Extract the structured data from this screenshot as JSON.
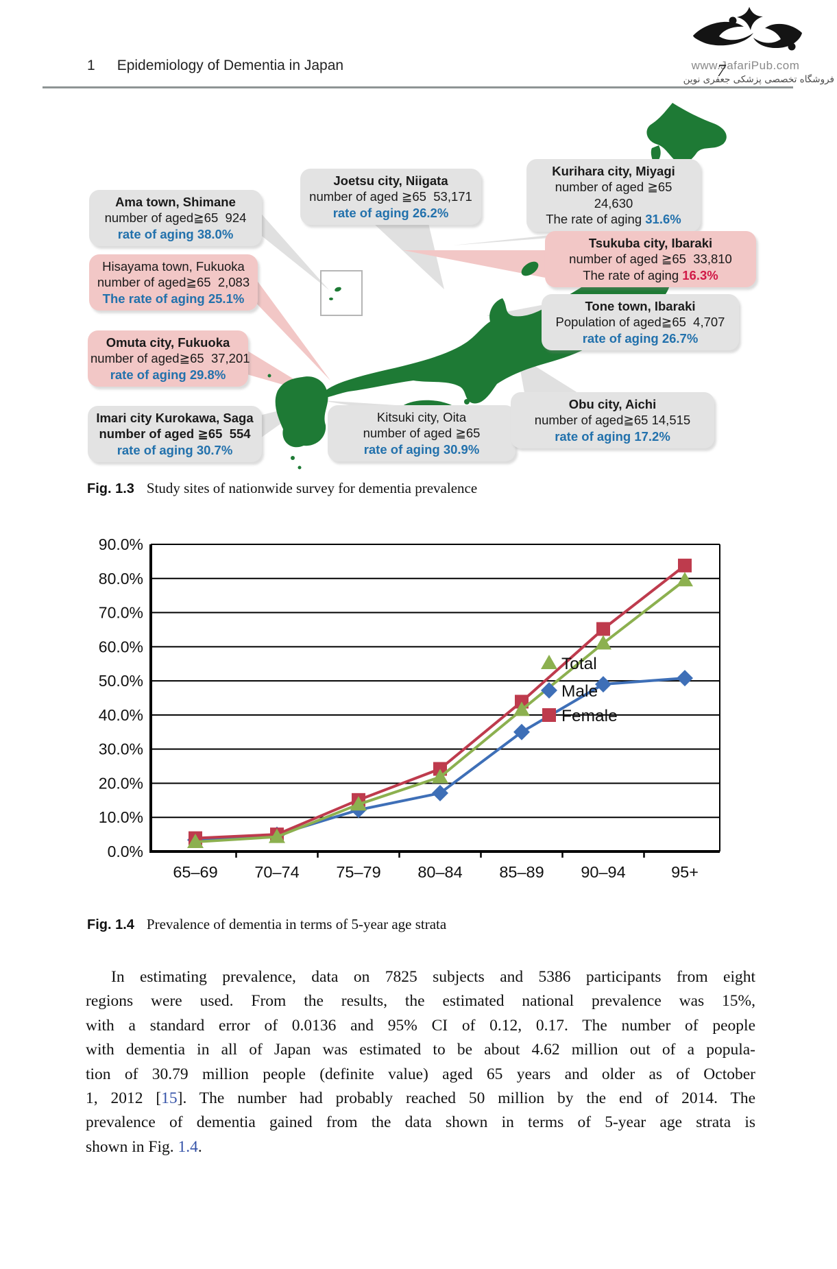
{
  "page": {
    "header": {
      "chapter_number": "1",
      "title": "Epidemiology of Dementia in Japan",
      "page_number": "7"
    },
    "logo": {
      "site": "www.JafariPub.com",
      "tagline_fa": "فروشگاه تخصصی پزشکی جعفری نوین"
    }
  },
  "figure_map": {
    "caption_label": "Fig. 1.3",
    "caption_text": "Study sites of nationwide survey for dementia prevalence",
    "callouts": [
      {
        "id": "ama",
        "variant": "gray",
        "lines": [
          [
            {
              "t": "Ama town, Shimane",
              "b": 1
            }
          ],
          [
            {
              "t": "number of aged≧65  924"
            }
          ],
          [
            {
              "t": "rate of aging 38.0%",
              "c": "blue"
            }
          ]
        ]
      },
      {
        "id": "hisayama",
        "variant": "pink",
        "lines": [
          [
            {
              "t": "Hisayama town, Fukuoka"
            }
          ],
          [
            {
              "t": "number of aged≧65  2,083"
            }
          ],
          [
            {
              "t": "The rate of aging 25.1%",
              "c": "blue"
            }
          ]
        ]
      },
      {
        "id": "omuta",
        "variant": "pink",
        "lines": [
          [
            {
              "t": "Omuta city, Fukuoka",
              "b": 1
            }
          ],
          [
            {
              "t": "number of aged≧65  37,201"
            }
          ],
          [
            {
              "t": "rate of aging 29.8%",
              "c": "blue"
            }
          ]
        ]
      },
      {
        "id": "imari",
        "variant": "gray",
        "lines": [
          [
            {
              "t": "Imari city Kurokawa, Saga",
              "b": 1
            }
          ],
          [
            {
              "t": "number of aged ≧65  554",
              "b": 1
            }
          ],
          [
            {
              "t": "rate of aging 30.7%",
              "c": "blue"
            }
          ]
        ]
      },
      {
        "id": "joetsu",
        "variant": "gray",
        "lines": [
          [
            {
              "t": "Joetsu city, Niigata",
              "b": 1
            }
          ],
          [
            {
              "t": "number of aged ≧65  53,171"
            }
          ],
          [
            {
              "t": "rate of aging 26.2%",
              "c": "blue"
            }
          ]
        ]
      },
      {
        "id": "kitsuki",
        "variant": "gray",
        "lines": [
          [
            {
              "t": "Kitsuki city, Oita"
            }
          ],
          [
            {
              "t": "number of aged ≧65"
            }
          ],
          [
            {
              "t": "rate of aging 30.9%",
              "c": "blue"
            }
          ]
        ]
      },
      {
        "id": "kurihara",
        "variant": "gray",
        "lines": [
          [
            {
              "t": "Kurihara city, Miyagi",
              "b": 1
            }
          ],
          [
            {
              "t": "number of aged ≧65"
            }
          ],
          [
            {
              "t": "24,630"
            }
          ],
          [
            {
              "t": "The rate of aging "
            },
            {
              "t": "31.6%",
              "c": "blue"
            }
          ]
        ]
      },
      {
        "id": "tsukuba",
        "variant": "pink",
        "lines": [
          [
            {
              "t": "Tsukuba city, Ibaraki",
              "b": 1
            }
          ],
          [
            {
              "t": "number of aged ≧65  33,810"
            }
          ],
          [
            {
              "t": "The rate of aging "
            },
            {
              "t": "16.3%",
              "c": "red"
            }
          ]
        ]
      },
      {
        "id": "tone",
        "variant": "gray",
        "lines": [
          [
            {
              "t": "Tone town, Ibaraki",
              "b": 1
            }
          ],
          [
            {
              "t": "Population of aged≧65  4,707"
            }
          ],
          [
            {
              "t": "rate of aging 26.7%",
              "c": "blue"
            }
          ]
        ]
      },
      {
        "id": "obu",
        "variant": "gray",
        "lines": [
          [
            {
              "t": "Obu city, Aichi",
              "b": 1
            }
          ],
          [
            {
              "t": "number of aged≧65 14,515"
            }
          ],
          [
            {
              "t": "rate of aging 17.2%",
              "c": "blue"
            }
          ]
        ]
      }
    ]
  },
  "chart_data": {
    "type": "line",
    "categories": [
      "65–69",
      "70–74",
      "75–79",
      "80–84",
      "85–89",
      "90–94",
      "95+"
    ],
    "series": [
      {
        "name": "Total",
        "marker": "triangle",
        "color": "#8CB04F",
        "values": [
          2.8,
          4.3,
          13.8,
          21.8,
          41.5,
          61.0,
          79.5
        ]
      },
      {
        "name": "Male",
        "marker": "diamond",
        "color": "#3E6FB7",
        "values": [
          3.4,
          4.9,
          12.2,
          17.1,
          35.0,
          49.0,
          50.8
        ]
      },
      {
        "name": "Female",
        "marker": "square",
        "color": "#BE3B4D",
        "values": [
          3.9,
          5.0,
          15.1,
          24.2,
          43.9,
          65.2,
          83.8
        ]
      }
    ],
    "ylim": [
      0,
      90
    ],
    "ytick_step": 10,
    "yticks": [
      "0.0%",
      "10.0%",
      "20.0%",
      "30.0%",
      "40.0%",
      "50.0%",
      "60.0%",
      "70.0%",
      "80.0%",
      "90.0%"
    ],
    "grid": "horizontal",
    "legend_position": "inside-right",
    "title": "",
    "xlabel": "",
    "ylabel": ""
  },
  "figure_chart": {
    "caption_label": "Fig. 1.4",
    "caption_text": "Prevalence of dementia in terms of 5-year age strata"
  },
  "paragraph": {
    "lines": [
      {
        "segments": [
          {
            "t": "In estimating prevalence, data on 7825 subjects and 5386 participants from eight"
          }
        ]
      },
      {
        "segments": [
          {
            "t": "regions were used. From the results, the estimated national prevalence was 15%,"
          }
        ]
      },
      {
        "segments": [
          {
            "t": "with a standard error of 0.0136 and 95% CI of 0.12, 0.17. The number of people"
          }
        ]
      },
      {
        "segments": [
          {
            "t": "with dementia in all of Japan was estimated to be about 4.62 million out of a popula-"
          }
        ]
      },
      {
        "segments": [
          {
            "t": "tion of 30.79 million people (definite value) aged 65 years and older as of October"
          }
        ]
      },
      {
        "segments": [
          {
            "t": "1, 2012 ["
          },
          {
            "t": "15",
            "link": true
          },
          {
            "t": "]. The number had probably reached 50 million by the end of 2014. The"
          }
        ]
      },
      {
        "segments": [
          {
            "t": "prevalence of dementia gained from the data shown in terms of 5-year age strata is"
          }
        ]
      },
      {
        "segments": [
          {
            "t": "shown in Fig. "
          },
          {
            "t": "1.4",
            "link": true
          },
          {
            "t": "."
          }
        ]
      }
    ]
  }
}
